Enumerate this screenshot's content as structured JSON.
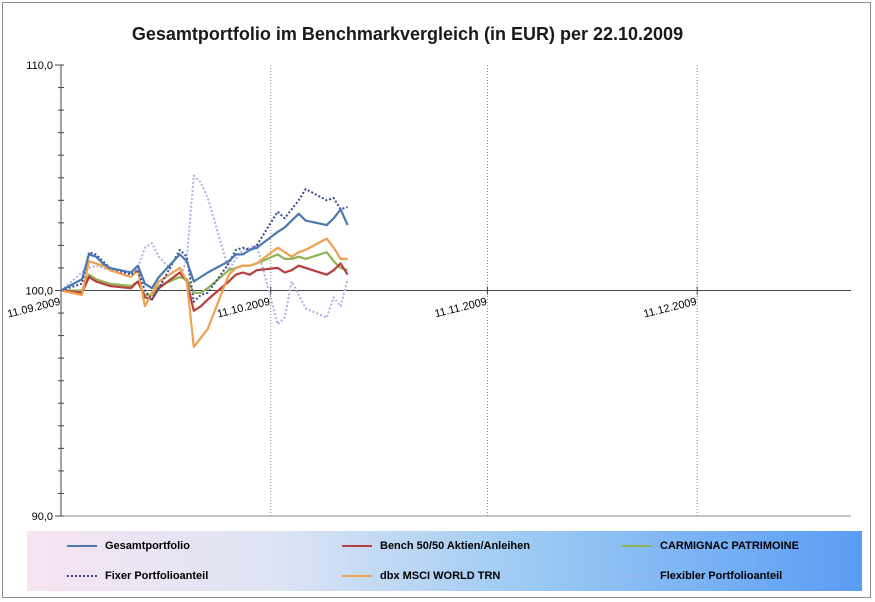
{
  "chart_data": {
    "type": "line",
    "title": "Gesamtportfolio  im Benchmarkvergleich (in EUR) per 22.10.2009",
    "ylim": [
      90,
      110
    ],
    "y_ticks": [
      "90,0",
      "100,0",
      "110,0"
    ],
    "y_tick_values": [
      90,
      100,
      110
    ],
    "x_ticks": [
      "11.09.2009",
      "11.10.2009",
      "11.11.2009",
      "11.12.2009"
    ],
    "x_tick_values": [
      0,
      30,
      61,
      91
    ],
    "xlim": [
      0,
      113
    ],
    "grid": "vertical dotted at month ticks",
    "legend_position": "bottom",
    "series": [
      {
        "name": "Gesamtportfolio",
        "color": "#4a78b0",
        "dash": "solid",
        "x": [
          0,
          3,
          4,
          5,
          6,
          7,
          10,
          11,
          12,
          13,
          14,
          17,
          18,
          19,
          20,
          21,
          24,
          25,
          26,
          27,
          28,
          31,
          32,
          33,
          34,
          35,
          38,
          39,
          40,
          41
        ],
        "y": [
          100.0,
          100.5,
          101.6,
          101.5,
          101.2,
          101.0,
          100.8,
          101.1,
          100.3,
          100.1,
          100.6,
          101.6,
          101.3,
          100.4,
          100.6,
          100.8,
          101.3,
          101.6,
          101.6,
          101.8,
          101.9,
          102.6,
          102.8,
          103.1,
          103.4,
          103.1,
          102.9,
          103.2,
          103.6,
          102.9
        ]
      },
      {
        "name": "Bench 50/50 Aktien/Anleihen",
        "color": "#b83d3d",
        "dash": "solid",
        "x": [
          0,
          3,
          4,
          5,
          6,
          7,
          10,
          11,
          12,
          13,
          14,
          17,
          18,
          19,
          20,
          21,
          24,
          25,
          26,
          27,
          28,
          31,
          32,
          33,
          34,
          35,
          38,
          39,
          40,
          41
        ],
        "y": [
          100.0,
          99.9,
          100.6,
          100.4,
          100.3,
          100.2,
          100.1,
          100.4,
          99.7,
          99.6,
          100.1,
          100.8,
          100.4,
          99.1,
          99.3,
          99.6,
          100.4,
          100.7,
          100.8,
          100.7,
          100.9,
          101.0,
          100.8,
          100.9,
          101.1,
          101.0,
          100.7,
          100.9,
          101.2,
          100.7
        ]
      },
      {
        "name": "CARMIGNAC PATRIMOINE",
        "color": "#8fb356",
        "dash": "solid",
        "x": [
          0,
          3,
          4,
          5,
          6,
          7,
          10,
          11,
          12,
          13,
          14,
          17,
          18,
          19,
          20,
          21,
          24,
          25,
          26,
          27,
          28,
          31,
          32,
          33,
          34,
          35,
          38,
          39,
          40,
          41
        ],
        "y": [
          100.0,
          100.0,
          100.7,
          100.5,
          100.4,
          100.3,
          100.2,
          100.4,
          99.8,
          99.8,
          100.2,
          100.6,
          100.5,
          99.9,
          99.9,
          100.1,
          100.9,
          101.0,
          101.1,
          101.1,
          101.2,
          101.6,
          101.4,
          101.4,
          101.5,
          101.4,
          101.7,
          101.3,
          101.0,
          100.9
        ]
      },
      {
        "name": "Fixer Portfolioanteil",
        "color": "#3c4a8a",
        "dash": "dotted",
        "x": [
          0,
          3,
          4,
          5,
          6,
          7,
          10,
          11,
          12,
          13,
          14,
          17,
          18,
          19,
          20,
          21,
          24,
          25,
          26,
          27,
          28,
          31,
          32,
          33,
          34,
          35,
          38,
          39,
          40,
          41
        ],
        "y": [
          100.0,
          100.3,
          101.7,
          101.6,
          101.3,
          101.0,
          100.7,
          100.9,
          100.0,
          99.6,
          100.1,
          101.8,
          101.5,
          99.5,
          99.8,
          99.9,
          101.2,
          101.8,
          101.9,
          101.8,
          102.0,
          103.5,
          103.2,
          103.6,
          104.0,
          104.5,
          104.0,
          104.1,
          103.6,
          103.7
        ]
      },
      {
        "name": "dbx MSCI WORLD TRN",
        "color": "#f0a050",
        "dash": "solid",
        "x": [
          0,
          3,
          4,
          5,
          6,
          7,
          10,
          11,
          12,
          13,
          14,
          17,
          18,
          19,
          20,
          21,
          24,
          25,
          26,
          27,
          28,
          31,
          32,
          33,
          34,
          35,
          38,
          39,
          40,
          41
        ],
        "y": [
          100.0,
          99.8,
          101.3,
          101.2,
          101.1,
          100.9,
          100.6,
          100.9,
          99.3,
          99.9,
          100.4,
          101.0,
          100.4,
          97.5,
          97.9,
          98.3,
          100.7,
          101.0,
          101.1,
          101.1,
          101.2,
          101.9,
          101.7,
          101.5,
          101.7,
          101.8,
          102.3,
          101.9,
          101.4,
          101.4
        ]
      },
      {
        "name": "Flexibler Portfolioanteil",
        "color": "#b0b0e0",
        "dash": "dotted",
        "x": [
          0,
          3,
          4,
          5,
          6,
          7,
          10,
          11,
          12,
          13,
          14,
          17,
          18,
          19,
          20,
          21,
          24,
          25,
          26,
          27,
          28,
          31,
          32,
          33,
          34,
          35,
          38,
          39,
          40,
          41
        ],
        "y": [
          100.0,
          100.8,
          101.0,
          101.1,
          101.0,
          100.9,
          100.8,
          101.0,
          101.9,
          102.1,
          101.5,
          100.5,
          101.4,
          105.1,
          104.8,
          104.1,
          100.9,
          101.4,
          101.8,
          101.9,
          102.0,
          98.5,
          98.8,
          100.4,
          99.8,
          99.2,
          98.8,
          99.7,
          99.3,
          100.5
        ]
      }
    ]
  }
}
